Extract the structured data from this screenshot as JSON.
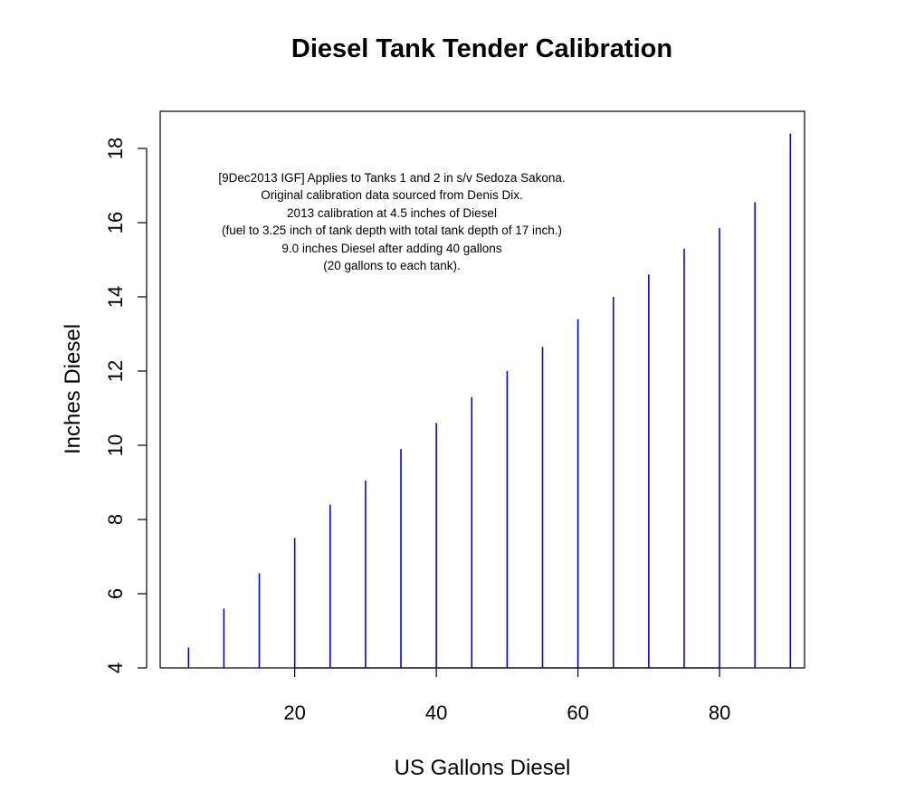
{
  "chart_data": {
    "type": "bar",
    "style": "vertical-lines",
    "title": "Diesel Tank Tender Calibration",
    "xlabel": "US Gallons Diesel",
    "ylabel": "Inches Diesel",
    "xlim": [
      1,
      92
    ],
    "ylim": [
      4,
      19
    ],
    "xticks": [
      20,
      40,
      60,
      80
    ],
    "yticks": [
      4,
      6,
      8,
      10,
      12,
      14,
      16,
      18
    ],
    "grid": false,
    "series_color": "#0000ff",
    "x": [
      5,
      10,
      15,
      20,
      25,
      30,
      35,
      40,
      45,
      50,
      55,
      60,
      65,
      70,
      75,
      80,
      85,
      90
    ],
    "y": [
      4.55,
      5.6,
      6.55,
      7.5,
      8.4,
      9.05,
      9.9,
      10.6,
      11.3,
      12.0,
      12.65,
      13.4,
      14.0,
      14.6,
      15.3,
      15.85,
      16.55,
      18.4
    ],
    "annotation": [
      "[9Dec2013 IGF] Applies to Tanks 1 and 2 in s/v Sedoza Sakona.",
      "Original calibration data sourced from Denis Dix.",
      "2013 calibration at 4.5 inches of Diesel",
      "(fuel to 3.25 inch of tank depth with total tank depth of 17 inch.)",
      "9.0 inches Diesel after adding 40 gallons",
      "(20 gallons to each tank)."
    ]
  }
}
